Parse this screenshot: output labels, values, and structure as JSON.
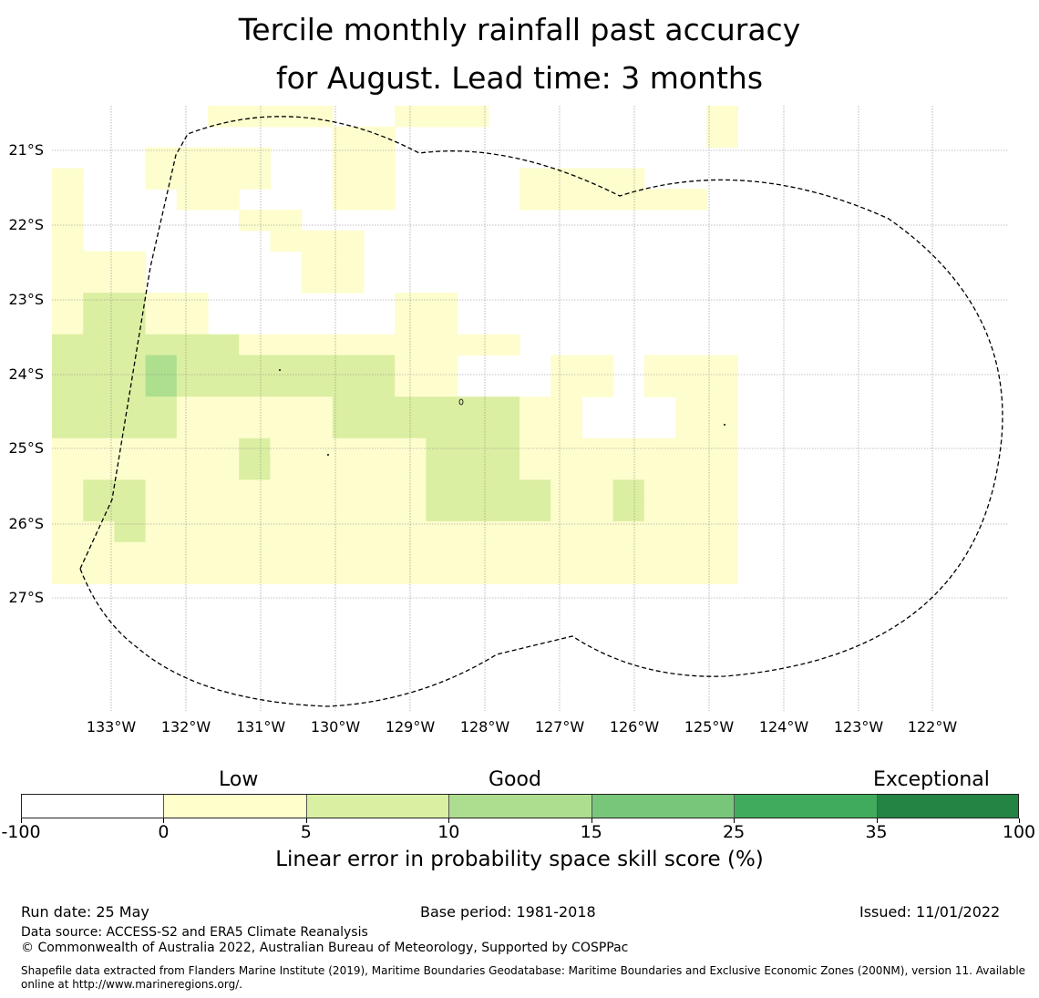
{
  "title_line1": "Tercile monthly rainfall past accuracy",
  "title_line2": "for August. Lead time: 3 months",
  "map": {
    "lat_labels": [
      "21°S",
      "22°S",
      "23°S",
      "24°S",
      "25°S",
      "26°S",
      "27°S"
    ],
    "lon_labels": [
      "133°W",
      "132°W",
      "131°W",
      "130°W",
      "129°W",
      "128°W",
      "127°W",
      "126°W",
      "125°W",
      "124°W",
      "123°W",
      "122°W"
    ],
    "levels": [
      "#ffffff",
      "#fefdce",
      "#dbefa2",
      "#addf8f",
      "#78c67a",
      "#41ab5c",
      "#238544"
    ],
    "rows": [
      "0000011110011100000001",
      "0000000001100000000001",
      "0001111001100000000000",
      "1001111001100001111000",
      "1000110001100001111110",
      "1000001100000000000000",
      "1000000111000000000000",
      "1110000011000000000000",
      "1110000011000000000000",
      "1221100000011000000000",
      "1221100000011000000000",
      "2222221111111110000000",
      "2223222222211000110111",
      "2223222222211000110111",
      "2222111112222221100011",
      "2222111112222221100011",
      "1111112111112221111111",
      "1111112111112221111111",
      "1221111111112222112111",
      "1221111111112222112111",
      "1121111111111111111111",
      "1111111111111111111111",
      "1111111111111111111111"
    ]
  },
  "colorbar": {
    "categories": [
      "Low",
      "Good",
      "Exceptional"
    ],
    "boundaries": [
      "-100",
      "0",
      "5",
      "10",
      "15",
      "25",
      "35",
      "100"
    ],
    "colors": [
      "#ffffff",
      "#ffffcc",
      "#d9f0a3",
      "#addd8e",
      "#78c679",
      "#41ab5d",
      "#238443"
    ],
    "title": "Linear error in probability space skill score (%)"
  },
  "footer": {
    "run_date": "Run date: 25 May",
    "base_period": "Base period: 1981-2018",
    "issued": "Issued: 11/01/2022",
    "data_source": "Data source: ACCESS-S2 and ERA5 Climate Reanalysis",
    "copyright": "© Commonwealth of Australia 2022, Australian Bureau of Meteorology, Supported by COSPPac",
    "shapefile": "Shapefile data extracted from Flanders Marine Institute (2019), Maritime Boundaries Geodatabase: Maritime Boundaries and Exclusive Economic Zones (200NM), version 11. Available online at http://www.marineregions.org/."
  }
}
